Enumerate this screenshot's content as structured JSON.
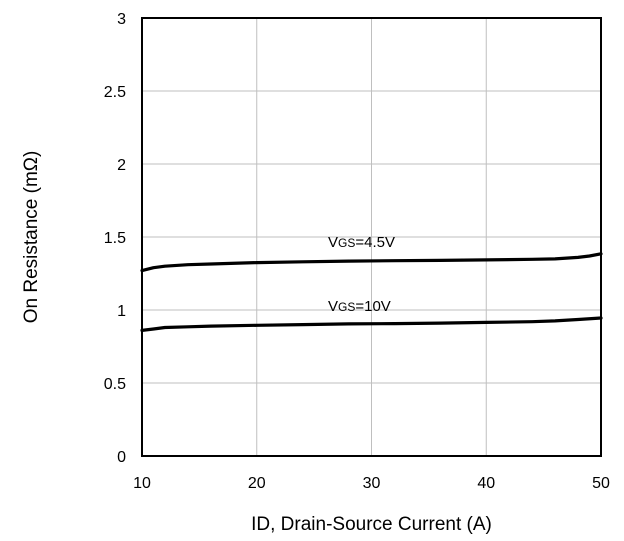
{
  "chart_data": {
    "type": "line",
    "title": "",
    "xlabel": "ID, Drain-Source Current (A)",
    "ylabel": "On Resistance (mΩ)",
    "xlim": [
      10,
      50
    ],
    "ylim": [
      0,
      3
    ],
    "x_ticks": [
      10,
      20,
      30,
      40,
      50
    ],
    "y_ticks": [
      0,
      0.5,
      1,
      1.5,
      2,
      2.5,
      3
    ],
    "x_tick_labels": [
      "10",
      "20",
      "30",
      "40",
      "50"
    ],
    "y_tick_labels": [
      "0",
      "0.5",
      "1",
      "1.5",
      "2",
      "2.5",
      "3"
    ],
    "grid": true,
    "legend": "none",
    "series": [
      {
        "name": "VGS=4.5V",
        "label_prefix": "V",
        "label_sub": "GS",
        "label_suffix": "=4.5V",
        "x": [
          10,
          11,
          12,
          14,
          16,
          20,
          24,
          28,
          32,
          36,
          40,
          44,
          46,
          48,
          49,
          50
        ],
        "y": [
          1.27,
          1.29,
          1.3,
          1.31,
          1.315,
          1.325,
          1.33,
          1.335,
          1.338,
          1.34,
          1.343,
          1.347,
          1.35,
          1.36,
          1.37,
          1.385
        ]
      },
      {
        "name": "VGS=10V",
        "label_prefix": "V",
        "label_sub": "GS",
        "label_suffix": "=10V",
        "x": [
          10,
          11,
          12,
          14,
          16,
          20,
          24,
          28,
          32,
          36,
          40,
          44,
          46,
          48,
          50
        ],
        "y": [
          0.86,
          0.87,
          0.88,
          0.885,
          0.89,
          0.895,
          0.9,
          0.905,
          0.907,
          0.91,
          0.915,
          0.92,
          0.925,
          0.935,
          0.945
        ]
      }
    ],
    "colors": {
      "line": "#000000",
      "grid": "#bfbfbf",
      "frame": "#000000"
    }
  }
}
